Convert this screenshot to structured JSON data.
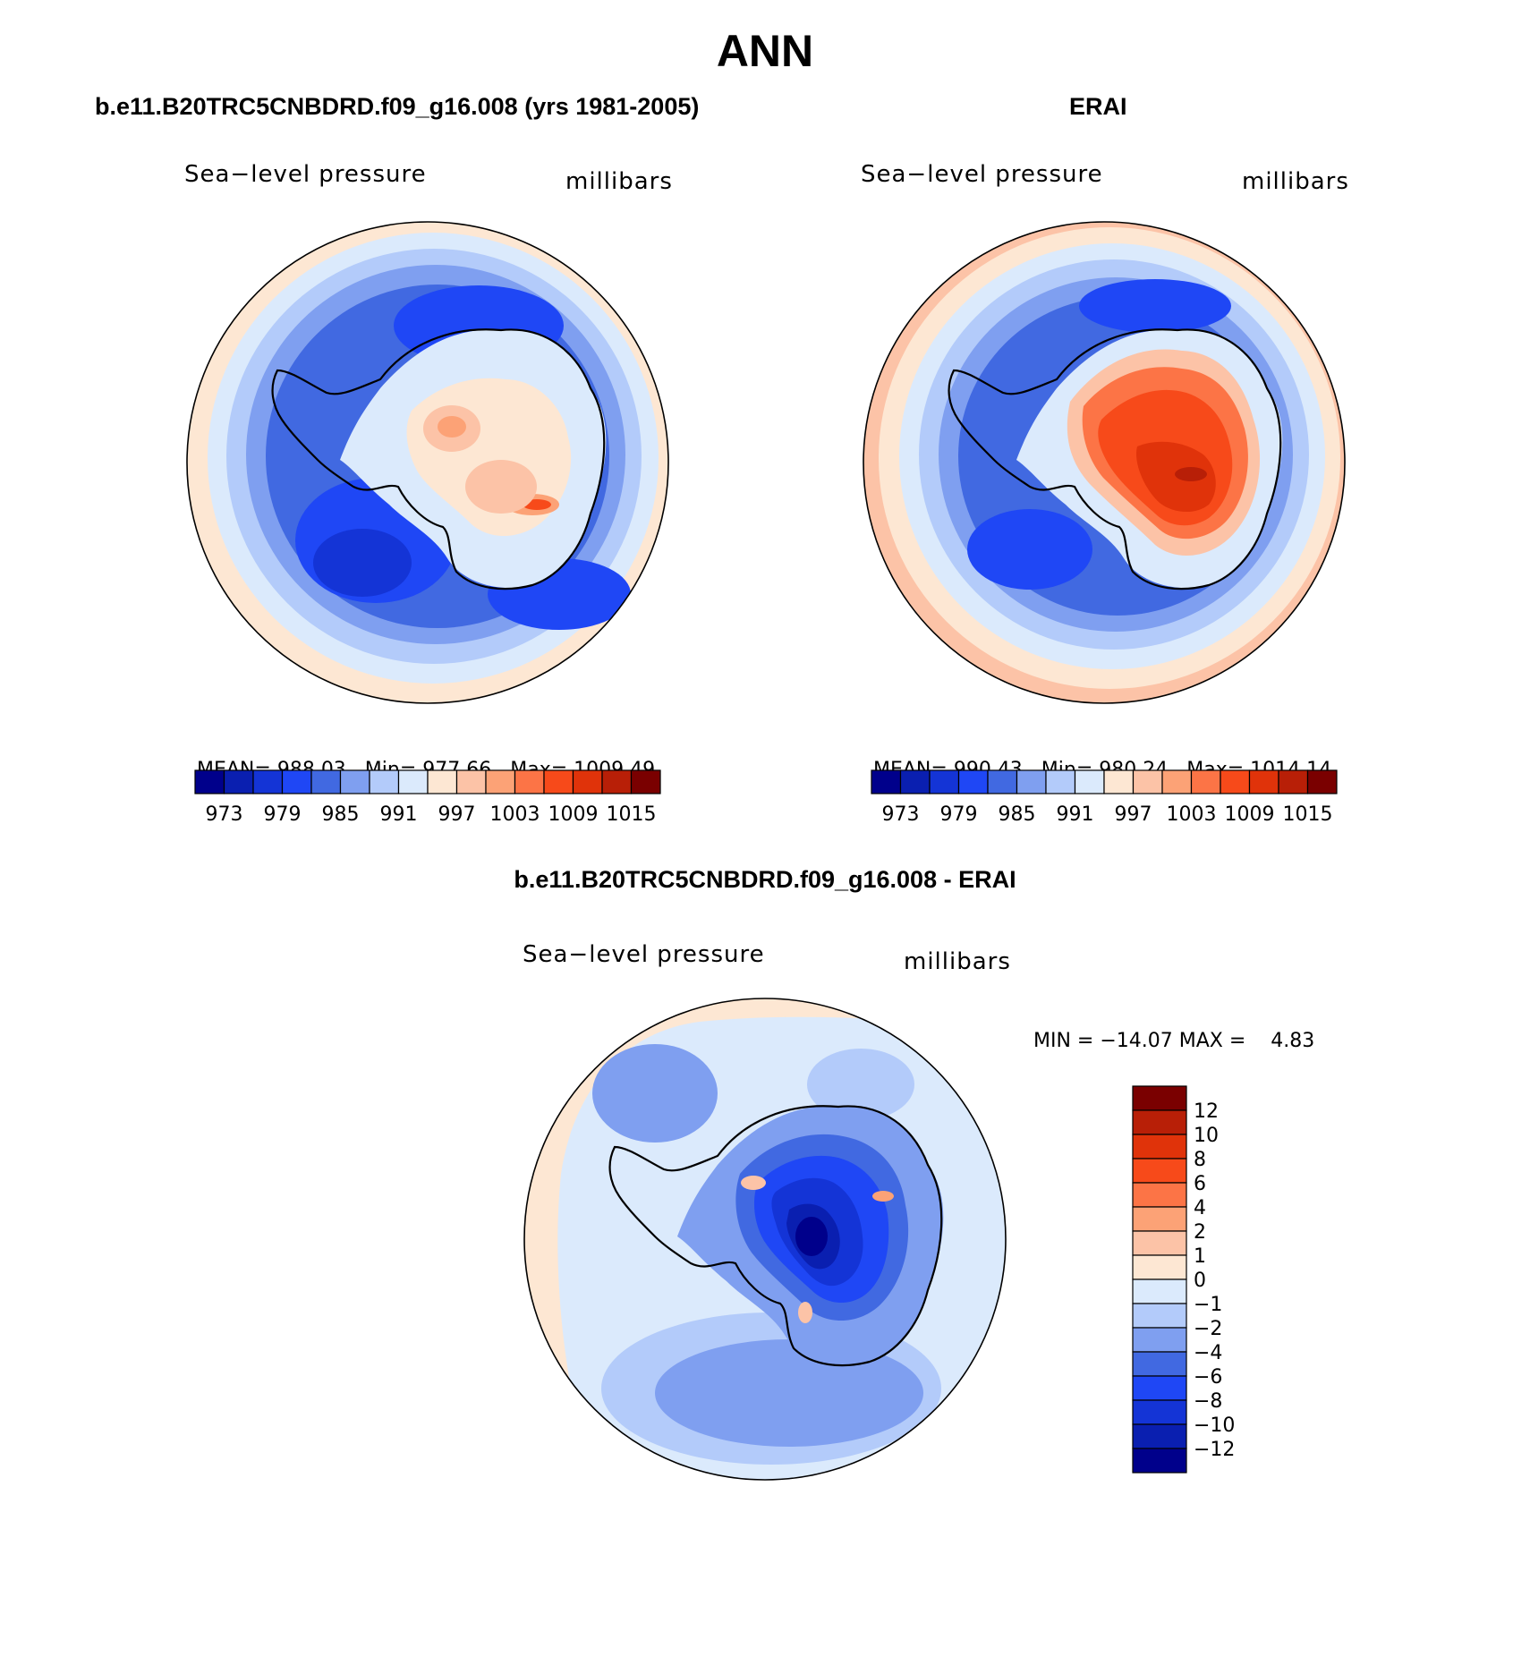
{
  "title": "ANN",
  "colors": {
    "abs_palette": [
      "#00008b",
      "#0a1fb0",
      "#1434d6",
      "#1f47f5",
      "#4169e1",
      "#7f9ff0",
      "#b3cbfa",
      "#dbeafc",
      "#fde7d3",
      "#fcc3a7",
      "#fca276",
      "#fc7446",
      "#f74a1a",
      "#e0330a",
      "#b81f07",
      "#7a0000"
    ],
    "diff_palette": [
      "#00008b",
      "#0a1fb0",
      "#1434d6",
      "#1f47f5",
      "#4169e1",
      "#7f9ff0",
      "#b3cbfa",
      "#dbeafc",
      "#fde7d3",
      "#fcc3a7",
      "#fca276",
      "#fc7446",
      "#f74a1a",
      "#e0330a",
      "#b81f07",
      "#7a0000"
    ]
  },
  "panels": [
    {
      "title": "b.e11.B20TRC5CNBDRD.f09_g16.008 (yrs 1981-2005)",
      "variable": "Sea−level pressure",
      "units": "millibars",
      "mean_label": "MEAN=",
      "mean": "988.03",
      "min_label": "Min=",
      "min": "977.66",
      "max_label": "Max=",
      "max": "1009.49",
      "colorbar_ticks": [
        "973",
        "979",
        "985",
        "991",
        "997",
        "1003",
        "1009",
        "1015"
      ]
    },
    {
      "title": "ERAI",
      "variable": "Sea−level pressure",
      "units": "millibars",
      "mean_label": "MEAN=",
      "mean": "990.43",
      "min_label": "Min=",
      "min": "980.24",
      "max_label": "Max=",
      "max": "1014.14",
      "colorbar_ticks": [
        "973",
        "979",
        "985",
        "991",
        "997",
        "1003",
        "1009",
        "1015"
      ]
    }
  ],
  "difference": {
    "title": "b.e11.B20TRC5CNBDRD.f09_g16.008 - ERAI",
    "variable": "Sea−level pressure",
    "units": "millibars",
    "minmax_text": "MIN = −14.07 MAX =    4.83",
    "colorbar_ticks": [
      "12",
      "10",
      "8",
      "6",
      "4",
      "2",
      "1",
      "0",
      "−1",
      "−2",
      "−4",
      "−6",
      "−8",
      "−10",
      "−12"
    ]
  }
}
